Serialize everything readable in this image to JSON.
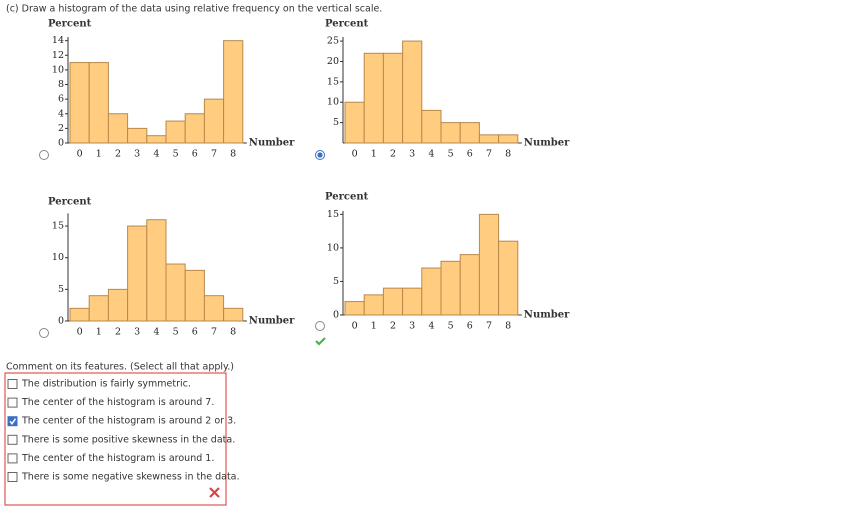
{
  "instruction": "(c) Draw a histogram of the data using relative frequency on the vertical scale.",
  "chart_data": [
    {
      "type": "bar",
      "ylabel": "Percent",
      "xlabel": "Number",
      "categories": [
        "0",
        "1",
        "2",
        "3",
        "4",
        "5",
        "6",
        "7",
        "8"
      ],
      "values": [
        11,
        11,
        4,
        2,
        1,
        3,
        4,
        6,
        14
      ],
      "ylim": [
        0,
        14.5
      ],
      "yticks": [
        0,
        2,
        4,
        6,
        8,
        10,
        12,
        14
      ],
      "color": "#ffcc80",
      "selected": false
    },
    {
      "type": "bar",
      "ylabel": "Percent",
      "xlabel": "Number",
      "categories": [
        "0",
        "1",
        "2",
        "3",
        "4",
        "5",
        "6",
        "7",
        "8"
      ],
      "values": [
        10,
        22,
        22,
        25,
        8,
        5,
        5,
        2,
        2
      ],
      "ylim": [
        0,
        26
      ],
      "yticks": [
        5,
        10,
        15,
        20,
        25
      ],
      "color": "#ffcc80",
      "selected": true
    },
    {
      "type": "bar",
      "ylabel": "Percent",
      "xlabel": "Number",
      "categories": [
        "0",
        "1",
        "2",
        "3",
        "4",
        "5",
        "6",
        "7",
        "8"
      ],
      "values": [
        2,
        4,
        5,
        15,
        16,
        9,
        8,
        4,
        2
      ],
      "ylim": [
        0,
        17
      ],
      "yticks": [
        0,
        5,
        10,
        15
      ],
      "color": "#ffcc80",
      "selected": false
    },
    {
      "type": "bar",
      "ylabel": "Percent",
      "xlabel": "Number",
      "categories": [
        "0",
        "1",
        "2",
        "3",
        "4",
        "5",
        "6",
        "7",
        "8"
      ],
      "values": [
        2,
        3,
        4,
        4,
        7,
        8,
        9,
        15,
        11
      ],
      "ylim": [
        0,
        15.5
      ],
      "yticks": [
        0,
        5,
        10,
        15
      ],
      "color": "#ffcc80",
      "selected": false
    }
  ],
  "comment": {
    "prompt": "Comment on its features. (Select all that apply.)",
    "options": [
      {
        "label": "The distribution is fairly symmetric.",
        "checked": false
      },
      {
        "label": "The center of the histogram is around 7.",
        "checked": false
      },
      {
        "label": "The center of the histogram is around 2 or 3.",
        "checked": true
      },
      {
        "label": "There is some positive skewness in the data.",
        "checked": false
      },
      {
        "label": "The center of the histogram is around 1.",
        "checked": false
      },
      {
        "label": "There is some negative skewness in the data.",
        "checked": false
      }
    ]
  }
}
